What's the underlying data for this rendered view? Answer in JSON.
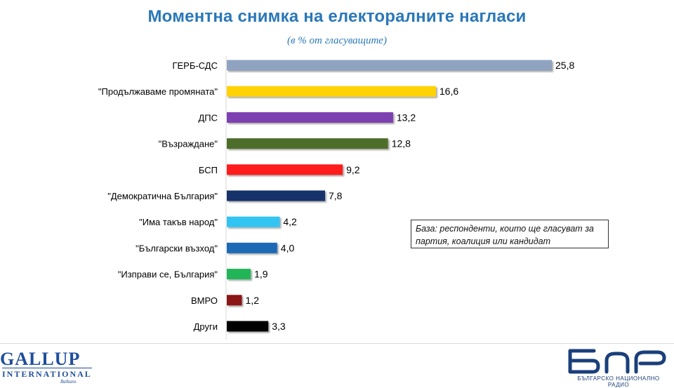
{
  "title": "Моментна снимка на електоралните нагласи",
  "subtitle": "(в % от гласуващите)",
  "note": "База: респонденти, които ще гласуват за партия, коалиция или кандидат",
  "logos": {
    "gallup_line1": "GALLUP",
    "gallup_line2": "INTERNATIONAL",
    "gallup_line3": "Balkans",
    "bnr_mark": "БНР",
    "bnr_caption": "БЪЛГАРСКО НАЦИОНАЛНО РАДИО"
  },
  "chart_data": {
    "type": "bar",
    "orientation": "horizontal",
    "title": "Моментна снимка на електоралните нагласи",
    "subtitle": "(в % от гласуващите)",
    "categories": [
      "ГЕРБ-СДС",
      "\"Продължаваме промяната\"",
      "ДПС",
      "\"Възраждане\"",
      "БСП",
      "\"Демократична България\"",
      "\"Има такъв народ\"",
      "\"Български възход\"",
      "\"Изправи се, България\"",
      "ВМРО",
      "Други"
    ],
    "values": [
      25.8,
      16.6,
      13.2,
      12.8,
      9.2,
      7.8,
      4.2,
      4.0,
      1.9,
      1.2,
      3.3
    ],
    "value_labels": [
      "25,8",
      "16,6",
      "13,2",
      "12,8",
      "9,2",
      "7,8",
      "4,2",
      "4,0",
      "1,9",
      "1,2",
      "3,3"
    ],
    "colors": [
      "#8fa3c1",
      "#ffd200",
      "#7b3fb0",
      "#4e6e2b",
      "#ff1a1a",
      "#16306b",
      "#33c4f2",
      "#1f6ab5",
      "#21b558",
      "#8b1212",
      "#000000"
    ],
    "xlim": [
      0,
      25.8
    ],
    "grid": false,
    "legend": "none"
  }
}
